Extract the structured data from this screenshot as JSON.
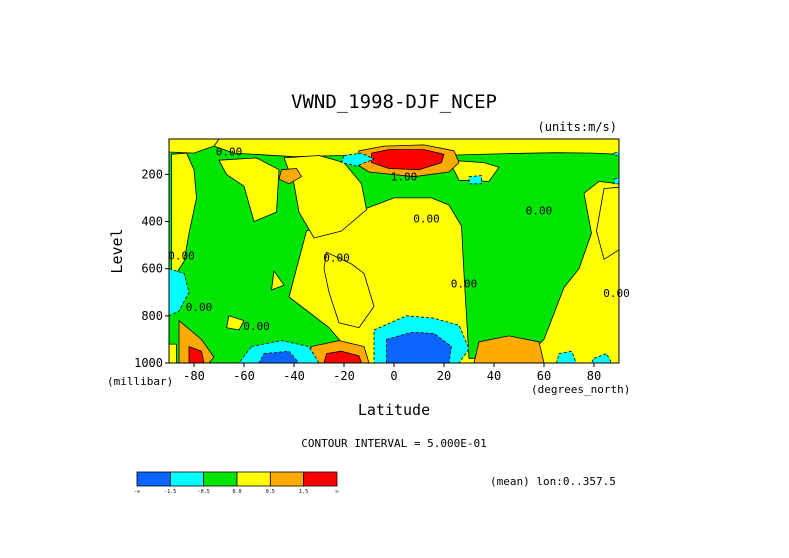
{
  "chart_data": {
    "type": "contour",
    "title": "VWND_1998-DJF_NCEP",
    "units_label": "(units:m/s)",
    "xlabel": "Latitude",
    "ylabel": "Level",
    "x_unit_label": "(degrees_north)",
    "y_unit_label": "(millibar)",
    "xlim": [
      -90,
      90
    ],
    "ylim": [
      1000,
      50
    ],
    "y_inverted": true,
    "x_ticks": [
      -80,
      -60,
      -40,
      -20,
      0,
      20,
      40,
      60,
      80
    ],
    "x_tick_labels": [
      "-80",
      "-60",
      "-40",
      "-20",
      "0",
      "20",
      "40",
      "60",
      "80"
    ],
    "y_ticks": [
      200,
      400,
      600,
      800,
      1000
    ],
    "y_tick_labels": [
      "200",
      "400",
      "600",
      "800",
      "1000"
    ],
    "contour_interval_text": "CONTOUR INTERVAL = 5.000E-01",
    "mean_text": "(mean) lon:0..357.5",
    "contour_labels": [
      {
        "text": "0.00",
        "x": -66,
        "y": 120
      },
      {
        "text": "0.00",
        "x": -85,
        "y": 560
      },
      {
        "text": "0.00",
        "x": -78,
        "y": 780
      },
      {
        "text": "0.00",
        "x": -55,
        "y": 860
      },
      {
        "text": "0.00",
        "x": -23,
        "y": 570
      },
      {
        "text": "1.00",
        "x": 4,
        "y": 225
      },
      {
        "text": "0.00",
        "x": 13,
        "y": 405
      },
      {
        "text": "0.00",
        "x": 28,
        "y": 680
      },
      {
        "text": "0.00",
        "x": 58,
        "y": 370
      },
      {
        "text": "0.00",
        "x": 89,
        "y": 720
      }
    ],
    "levels": [
      {
        "range": "< -1.5",
        "color": "#0a64ff"
      },
      {
        "range": "-1.5 to -0.5",
        "color": "#00ffff"
      },
      {
        "range": "-0.5 to 0.0",
        "color": "#00e600"
      },
      {
        "range": "0.0 to 0.5",
        "color": "#ffff00"
      },
      {
        "range": "0.5 to 1.5",
        "color": "#ffaa00"
      },
      {
        "range": "> 1.5",
        "color": "#ff0000"
      }
    ],
    "colorbar_labels": [
      "-∞",
      "-1.5",
      "-0.5",
      "0.0",
      "0.5",
      "1.5",
      "∞"
    ],
    "regions": [
      {
        "level": 3,
        "pts": [
          [
            -90,
            50
          ],
          [
            90,
            50
          ],
          [
            90,
            1000
          ],
          [
            -90,
            1000
          ]
        ]
      },
      {
        "level": 2,
        "pts": [
          [
            -90,
            50
          ],
          [
            -70,
            50
          ],
          [
            -72,
            80
          ],
          [
            -64,
            110
          ],
          [
            -40,
            125
          ],
          [
            -20,
            120
          ],
          [
            -5,
            110
          ],
          [
            10,
            110
          ],
          [
            25,
            118
          ],
          [
            45,
            112
          ],
          [
            65,
            108
          ],
          [
            80,
            110
          ],
          [
            90,
            115
          ],
          [
            90,
            240
          ],
          [
            82,
            230
          ],
          [
            76,
            280
          ],
          [
            79,
            450
          ],
          [
            74,
            600
          ],
          [
            68,
            680
          ],
          [
            60,
            900
          ],
          [
            52,
            980
          ],
          [
            30,
            980
          ],
          [
            28,
            620
          ],
          [
            27,
            420
          ],
          [
            22,
            330
          ],
          [
            15,
            300
          ],
          [
            0,
            300
          ],
          [
            -20,
            380
          ],
          [
            -35,
            440
          ],
          [
            -42,
            720
          ],
          [
            -26,
            850
          ],
          [
            -18,
            950
          ],
          [
            -34,
            1000
          ],
          [
            -90,
            1000
          ]
        ]
      },
      {
        "level": 3,
        "pts": [
          [
            -90,
            50
          ],
          [
            -70,
            50
          ],
          [
            -72,
            80
          ],
          [
            -80,
            110
          ],
          [
            -90,
            105
          ]
        ]
      },
      {
        "level": 3,
        "pts": [
          [
            -89,
            115
          ],
          [
            -83,
            110
          ],
          [
            -80,
            180
          ],
          [
            -79,
            300
          ],
          [
            -82,
            450
          ],
          [
            -84,
            570
          ],
          [
            -89,
            650
          ]
        ]
      },
      {
        "level": 3,
        "pts": [
          [
            -70,
            140
          ],
          [
            -55,
            130
          ],
          [
            -46,
            180
          ],
          [
            -47,
            360
          ],
          [
            -56,
            400
          ],
          [
            -60,
            250
          ],
          [
            -67,
            200
          ]
        ]
      },
      {
        "level": 3,
        "pts": [
          [
            -44,
            130
          ],
          [
            -30,
            120
          ],
          [
            -20,
            150
          ],
          [
            -13,
            240
          ],
          [
            -11,
            350
          ],
          [
            -21,
            440
          ],
          [
            -32,
            470
          ],
          [
            -38,
            360
          ],
          [
            -40,
            240
          ]
        ]
      },
      {
        "level": 3,
        "pts": [
          [
            22,
            140
          ],
          [
            36,
            150
          ],
          [
            42,
            170
          ],
          [
            38,
            230
          ],
          [
            26,
            225
          ]
        ]
      },
      {
        "level": 3,
        "pts": [
          [
            -27,
            530
          ],
          [
            -17,
            580
          ],
          [
            -12,
            620
          ],
          [
            -8,
            760
          ],
          [
            -14,
            850
          ],
          [
            -22,
            830
          ],
          [
            -26,
            700
          ],
          [
            -28,
            600
          ]
        ]
      },
      {
        "level": 3,
        "pts": [
          [
            -66,
            800
          ],
          [
            -60,
            820
          ],
          [
            -62,
            860
          ],
          [
            -67,
            850
          ]
        ]
      },
      {
        "level": 3,
        "pts": [
          [
            -48,
            610
          ],
          [
            -44,
            670
          ],
          [
            -49,
            690
          ]
        ]
      },
      {
        "level": 3,
        "pts": [
          [
            84,
            260
          ],
          [
            90,
            255
          ],
          [
            90,
            520
          ],
          [
            84,
            560
          ],
          [
            81,
            440
          ]
        ]
      },
      {
        "level": 4,
        "pts": [
          [
            -14,
            100
          ],
          [
            -4,
            80
          ],
          [
            12,
            75
          ],
          [
            24,
            100
          ],
          [
            26,
            150
          ],
          [
            22,
            190
          ],
          [
            8,
            210
          ],
          [
            -10,
            190
          ],
          [
            -16,
            150
          ]
        ]
      },
      {
        "level": 5,
        "pts": [
          [
            -9,
            110
          ],
          [
            -2,
            95
          ],
          [
            12,
            95
          ],
          [
            20,
            115
          ],
          [
            19,
            150
          ],
          [
            10,
            180
          ],
          [
            -2,
            175
          ],
          [
            -9,
            150
          ]
        ]
      },
      {
        "level": 4,
        "pts": [
          [
            -45,
            180
          ],
          [
            -39,
            175
          ],
          [
            -37,
            210
          ],
          [
            -42,
            240
          ],
          [
            -46,
            220
          ]
        ]
      },
      {
        "level": 4,
        "pts": [
          [
            34,
            910
          ],
          [
            46,
            885
          ],
          [
            58,
            910
          ],
          [
            60,
            1000
          ],
          [
            32,
            1000
          ]
        ]
      },
      {
        "level": 4,
        "pts": [
          [
            -33,
            930
          ],
          [
            -22,
            905
          ],
          [
            -12,
            930
          ],
          [
            -10,
            1000
          ],
          [
            -36,
            1000
          ]
        ]
      },
      {
        "level": 5,
        "pts": [
          [
            -27,
            960
          ],
          [
            -21,
            950
          ],
          [
            -14,
            970
          ],
          [
            -13,
            1000
          ],
          [
            -28,
            1000
          ]
        ]
      },
      {
        "level": 4,
        "pts": [
          [
            -86,
            820
          ],
          [
            -77,
            900
          ],
          [
            -72,
            975
          ],
          [
            -74,
            1000
          ],
          [
            -86,
            1000
          ]
        ]
      },
      {
        "level": 5,
        "pts": [
          [
            -82,
            930
          ],
          [
            -77,
            950
          ],
          [
            -76,
            1000
          ],
          [
            -82,
            1000
          ]
        ]
      },
      {
        "level": 1,
        "pts": [
          [
            -20,
            120
          ],
          [
            -13,
            110
          ],
          [
            -8,
            135
          ],
          [
            -15,
            165
          ],
          [
            -21,
            150
          ]
        ]
      },
      {
        "level": 1,
        "pts": [
          [
            30,
            210
          ],
          [
            35,
            205
          ],
          [
            35,
            240
          ],
          [
            30,
            240
          ]
        ]
      },
      {
        "level": 1,
        "pts": [
          [
            -90,
            600
          ],
          [
            -84,
            620
          ],
          [
            -82,
            700
          ],
          [
            -86,
            780
          ],
          [
            -90,
            800
          ]
        ]
      },
      {
        "level": 1,
        "pts": [
          [
            -57,
            930
          ],
          [
            -45,
            905
          ],
          [
            -34,
            930
          ],
          [
            -30,
            1000
          ],
          [
            -62,
            1000
          ]
        ]
      },
      {
        "level": 0,
        "pts": [
          [
            -52,
            960
          ],
          [
            -42,
            950
          ],
          [
            -38,
            1000
          ],
          [
            -54,
            1000
          ]
        ]
      },
      {
        "level": 1,
        "pts": [
          [
            -8,
            860
          ],
          [
            5,
            800
          ],
          [
            16,
            810
          ],
          [
            26,
            840
          ],
          [
            30,
            940
          ],
          [
            26,
            1000
          ],
          [
            -8,
            1000
          ]
        ]
      },
      {
        "level": 0,
        "pts": [
          [
            -3,
            900
          ],
          [
            7,
            870
          ],
          [
            16,
            875
          ],
          [
            23,
            930
          ],
          [
            22,
            1000
          ],
          [
            -3,
            1000
          ]
        ]
      },
      {
        "level": 1,
        "pts": [
          [
            66,
            960
          ],
          [
            71,
            950
          ],
          [
            73,
            1000
          ],
          [
            65,
            1000
          ]
        ]
      },
      {
        "level": 1,
        "pts": [
          [
            80,
            980
          ],
          [
            85,
            960
          ],
          [
            87,
            1000
          ],
          [
            79,
            1000
          ]
        ]
      },
      {
        "level": 1,
        "pts": [
          [
            88,
            110
          ],
          [
            90,
            105
          ],
          [
            90,
            120
          ],
          [
            88,
            120
          ]
        ]
      },
      {
        "level": 1,
        "pts": [
          [
            88,
            220
          ],
          [
            90,
            215
          ],
          [
            90,
            240
          ],
          [
            88,
            240
          ]
        ]
      },
      {
        "level": 3,
        "pts": [
          [
            -90,
            920
          ],
          [
            -87,
            920
          ],
          [
            -87,
            1000
          ],
          [
            -90,
            1000
          ]
        ]
      }
    ]
  }
}
